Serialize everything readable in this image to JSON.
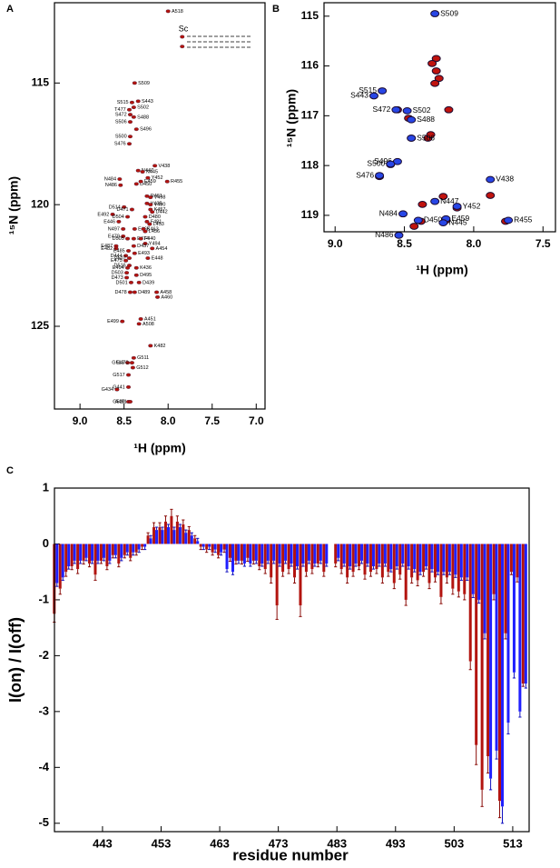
{
  "chart_data": [
    {
      "type": "scatter",
      "panel": "A",
      "xlabel": "¹H (ppm)",
      "ylabel": "¹⁵N (ppm)",
      "annotation": "Sc",
      "xlim": [
        9.29,
        6.9
      ],
      "ylim": [
        128.4,
        111.7
      ],
      "xticks": [
        {
          "value": 9,
          "label": "9.0"
        },
        8.5,
        {
          "value": 8,
          "label": "8.0"
        },
        7.5,
        {
          "value": 7,
          "label": "7.0"
        }
      ],
      "yticks": [
        115,
        120,
        125
      ],
      "series": [
        {
          "color": "#b3140f",
          "x": [
            8.0,
            7.84,
            7.84,
            8.38,
            8.41,
            8.34,
            8.44,
            8.39,
            8.43,
            8.39,
            8.43,
            8.36,
            8.43,
            8.44,
            8.15,
            8.34,
            8.29,
            8.23,
            8.55,
            8.01,
            8.54,
            8.36,
            8.31,
            8.24,
            8.2,
            8.24,
            8.2,
            8.5,
            8.41,
            8.2,
            8.18,
            8.63,
            8.46,
            8.26,
            8.24,
            8.56,
            8.21,
            8.51,
            8.38,
            8.28,
            8.26,
            8.51,
            8.39,
            8.31,
            8.46,
            8.26,
            8.59,
            8.39,
            8.18,
            8.59,
            8.45,
            8.38,
            8.48,
            8.23,
            8.44,
            8.48,
            8.44,
            8.46,
            8.36,
            8.47,
            8.36,
            8.47,
            8.42,
            8.33,
            8.43,
            8.38,
            8.13,
            8.12,
            8.52,
            8.31,
            8.33,
            8.2,
            8.39,
            8.46,
            8.41,
            8.4,
            8.45,
            8.58,
            8.45,
            8.45,
            8.43
          ],
          "y": [
            112.05,
            113.1,
            113.5,
            115.0,
            115.8,
            115.75,
            116.1,
            116.0,
            116.3,
            116.4,
            116.6,
            116.9,
            117.2,
            117.5,
            118.4,
            118.6,
            118.65,
            118.9,
            118.95,
            119.05,
            119.2,
            119.15,
            119.05,
            119.65,
            119.7,
            119.95,
            120.0,
            120.1,
            120.2,
            120.2,
            120.3,
            120.4,
            120.5,
            120.5,
            120.7,
            120.7,
            120.8,
            121.0,
            121.0,
            121.0,
            121.1,
            121.3,
            121.4,
            121.4,
            121.4,
            121.6,
            121.7,
            121.7,
            121.8,
            121.8,
            121.9,
            122.0,
            122.1,
            122.2,
            122.2,
            122.3,
            122.5,
            122.6,
            122.6,
            122.8,
            122.9,
            123.0,
            123.2,
            123.2,
            123.6,
            123.6,
            123.6,
            123.8,
            124.8,
            124.7,
            124.9,
            125.8,
            126.3,
            126.5,
            126.5,
            126.7,
            127.0,
            127.6,
            127.5,
            128.1,
            128.1
          ],
          "labels": [
            "A518",
            null,
            null,
            "S509",
            "S515",
            "S443",
            "T477",
            "S502",
            "S472",
            "S488",
            "S506",
            "S496",
            "S500",
            "S476",
            "V438",
            "N447",
            "N445",
            "Y452",
            "N484",
            "R455",
            "N486",
            "D450",
            "E459",
            "R461",
            "V498",
            "Y435",
            "V490",
            "D514",
            "D471",
            "K457",
            "D442",
            "E492",
            "D504",
            "D480",
            "F481",
            "E446",
            "L453",
            "N497",
            "E465",
            "K463",
            "L456",
            "E479",
            "E474",
            "F440",
            "D505",
            "Y494",
            "E487",
            "D437",
            "A454",
            "E482",
            "E485",
            "E493",
            "D444",
            "E448",
            "D507",
            "E475",
            "D516",
            "E494",
            "K436",
            "D503",
            "D495",
            "D473",
            "D501",
            "D439",
            "D478",
            "D489",
            "A458",
            "A460",
            "E499",
            "A451",
            "A508",
            "K482",
            "G511",
            "G513",
            "G470",
            "G512",
            "G517",
            "G434",
            "G441",
            "G510",
            "A491"
          ]
        }
      ]
    },
    {
      "type": "scatter",
      "panel": "B",
      "xlabel": "¹H (ppm)",
      "ylabel": "¹⁵N (ppm)",
      "xlim": [
        9.08,
        7.41
      ],
      "ylim": [
        119.33,
        114.73
      ],
      "xticks": [
        {
          "value": 9,
          "label": "9.0"
        },
        8.5,
        {
          "value": 8,
          "label": "8.0"
        },
        7.5
      ],
      "yticks": [
        115,
        116,
        117,
        118,
        119
      ],
      "series": [
        {
          "color": "#c0130e",
          "x": [
            8.27,
            8.3,
            8.27,
            8.25,
            8.28,
            8.18,
            8.33,
            8.31,
            8.55,
            8.47,
            7.88,
            8.22,
            8.37,
            8.38,
            8.2,
            7.77,
            8.43,
            8.12,
            8.6,
            8.68,
            8.45
          ],
          "y": [
            115.85,
            115.95,
            116.1,
            116.25,
            116.35,
            116.88,
            117.45,
            117.38,
            116.88,
            117.05,
            118.6,
            118.62,
            118.78,
            119.12,
            119.1,
            119.12,
            119.22,
            118.85,
            117.98,
            118.22,
            117.45
          ]
        },
        {
          "color": "#2846e6",
          "x": [
            8.28,
            8.66,
            8.72,
            8.56,
            8.48,
            8.45,
            8.45,
            8.55,
            8.6,
            8.68,
            7.88,
            8.28,
            8.12,
            8.51,
            8.4,
            8.2,
            8.22,
            7.75,
            8.54
          ],
          "y": [
            114.95,
            116.5,
            116.6,
            116.88,
            116.9,
            117.08,
            117.45,
            117.92,
            117.97,
            118.2,
            118.28,
            118.72,
            118.82,
            118.97,
            119.1,
            119.07,
            119.15,
            119.1,
            119.4
          ],
          "labels": [
            "S509",
            "S515",
            "S443",
            "S472",
            "S502",
            "S488",
            "S506",
            "S496",
            "S500",
            "S476",
            "V438",
            "N447",
            "Y452",
            "N484",
            "D450",
            "E459",
            "N445",
            "R455",
            "N486"
          ]
        }
      ]
    },
    {
      "type": "bar",
      "panel": "C",
      "xlabel": "residue number",
      "ylabel": "I(on) / I(off)",
      "xlim": [
        434.8,
        515.8
      ],
      "ylim": [
        -5.15,
        1
      ],
      "xticks": [
        443,
        453,
        463,
        473,
        483,
        493,
        503,
        513
      ],
      "yticks": [
        1,
        0,
        -1,
        -2,
        -3,
        -4,
        -5
      ],
      "x": [
        435,
        436,
        437,
        438,
        439,
        440,
        441,
        442,
        443,
        444,
        445,
        446,
        447,
        448,
        449,
        450,
        451,
        452,
        453,
        454,
        455,
        456,
        457,
        458,
        459,
        460,
        461,
        462,
        463,
        464,
        465,
        466,
        467,
        468,
        469,
        470,
        471,
        472,
        473,
        474,
        475,
        476,
        477,
        478,
        479,
        480,
        481,
        482,
        483,
        484,
        485,
        486,
        487,
        488,
        489,
        490,
        491,
        492,
        493,
        494,
        495,
        496,
        497,
        498,
        499,
        500,
        501,
        502,
        503,
        504,
        505,
        506,
        507,
        508,
        509,
        510,
        511,
        512,
        513,
        514,
        515
      ],
      "series": [
        {
          "color": "#b3140f",
          "values": [
            -1.25,
            -0.8,
            -0.5,
            -0.4,
            -0.45,
            -0.3,
            -0.35,
            -0.55,
            -0.3,
            -0.4,
            -0.2,
            -0.35,
            -0.2,
            -0.25,
            -0.15,
            -0.05,
            0.15,
            0.3,
            0.3,
            0.4,
            0.5,
            0.4,
            0.35,
            0.25,
            0.1,
            -0.05,
            -0.1,
            -0.15,
            -0.2,
            -0.1,
            -0.25,
            -0.3,
            -0.3,
            -0.25,
            -0.3,
            -0.4,
            -0.45,
            -0.6,
            -1.1,
            -0.5,
            -0.45,
            -0.6,
            -1.1,
            -0.5,
            -0.45,
            -0.35,
            -0.5,
            null,
            -0.35,
            -0.45,
            -0.6,
            -0.5,
            -0.4,
            -0.55,
            -0.5,
            -0.45,
            -0.6,
            -0.5,
            -0.7,
            -0.55,
            -1.0,
            -0.6,
            -0.65,
            -0.5,
            -0.7,
            -0.6,
            -0.95,
            -0.6,
            -0.8,
            -0.85,
            -0.9,
            -2.1,
            -3.6,
            -4.4,
            -3.8,
            -0.9,
            -4.6,
            -1.6,
            -0.5,
            -0.6,
            -2.5
          ],
          "errors": [
            0.15,
            0.1,
            0.08,
            0.06,
            0.08,
            0.06,
            0.06,
            0.1,
            0.05,
            0.06,
            0.05,
            0.06,
            0.05,
            0.05,
            0.05,
            0.05,
            0.05,
            0.08,
            0.08,
            0.1,
            0.12,
            0.1,
            0.08,
            0.06,
            0.05,
            0.05,
            0.05,
            0.05,
            0.05,
            0.05,
            0.06,
            0.06,
            0.06,
            0.06,
            0.06,
            0.06,
            0.08,
            0.1,
            0.25,
            0.08,
            0.08,
            0.1,
            0.2,
            0.08,
            0.08,
            0.06,
            0.08,
            null,
            0.06,
            0.08,
            0.1,
            0.08,
            0.06,
            0.08,
            0.08,
            0.08,
            0.1,
            0.08,
            0.1,
            0.08,
            0.1,
            0.1,
            0.1,
            0.08,
            0.1,
            0.08,
            0.12,
            0.1,
            0.1,
            0.1,
            0.1,
            0.15,
            0.35,
            0.3,
            0.3,
            0.1,
            0.3,
            0.1,
            0.05,
            0.08,
            0.05
          ]
        },
        {
          "color": "#1f1fff",
          "values": [
            -0.7,
            -0.6,
            -0.4,
            -0.3,
            -0.3,
            -0.25,
            -0.3,
            -0.3,
            -0.25,
            -0.3,
            -0.2,
            -0.25,
            -0.15,
            -0.15,
            -0.1,
            -0.05,
            0.1,
            0.25,
            0.25,
            0.3,
            0.25,
            0.3,
            0.2,
            0.15,
            0.05,
            -0.05,
            -0.05,
            -0.1,
            -0.15,
            -0.45,
            -0.5,
            -0.3,
            -0.35,
            -0.35,
            -0.3,
            -0.35,
            -0.3,
            -0.3,
            -0.35,
            -0.3,
            -0.35,
            -0.4,
            -0.35,
            -0.3,
            -0.35,
            -0.3,
            -0.35,
            null,
            -0.25,
            -0.35,
            -0.4,
            -0.35,
            -0.3,
            -0.35,
            -0.4,
            -0.35,
            -0.35,
            -0.45,
            -0.4,
            -0.35,
            -0.4,
            -0.45,
            -0.5,
            -0.4,
            -0.45,
            -0.5,
            -0.5,
            -0.5,
            -0.55,
            -0.6,
            -0.6,
            -0.9,
            -1.0,
            -1.6,
            -4.2,
            -3.7,
            -4.7,
            -3.2,
            -2.3,
            -3.0,
            -2.5
          ],
          "errors": [
            0.06,
            0.05,
            0.05,
            0.05,
            0.05,
            0.05,
            0.05,
            0.05,
            0.05,
            0.05,
            0.05,
            0.05,
            0.05,
            0.05,
            0.05,
            0.05,
            0.05,
            0.05,
            0.05,
            0.05,
            0.05,
            0.05,
            0.05,
            0.05,
            0.05,
            0.05,
            0.05,
            0.05,
            0.05,
            0.05,
            0.05,
            0.05,
            0.05,
            0.05,
            0.05,
            0.05,
            0.05,
            0.05,
            0.05,
            0.05,
            0.05,
            0.05,
            0.05,
            0.05,
            0.05,
            0.05,
            0.05,
            null,
            0.05,
            0.05,
            0.05,
            0.05,
            0.05,
            0.05,
            0.05,
            0.05,
            0.05,
            0.05,
            0.05,
            0.05,
            0.05,
            0.05,
            0.05,
            0.05,
            0.05,
            0.05,
            0.05,
            0.05,
            0.05,
            0.05,
            0.05,
            0.06,
            0.06,
            0.1,
            0.2,
            0.15,
            0.3,
            0.2,
            0.1,
            0.1,
            0.08
          ]
        }
      ]
    }
  ]
}
